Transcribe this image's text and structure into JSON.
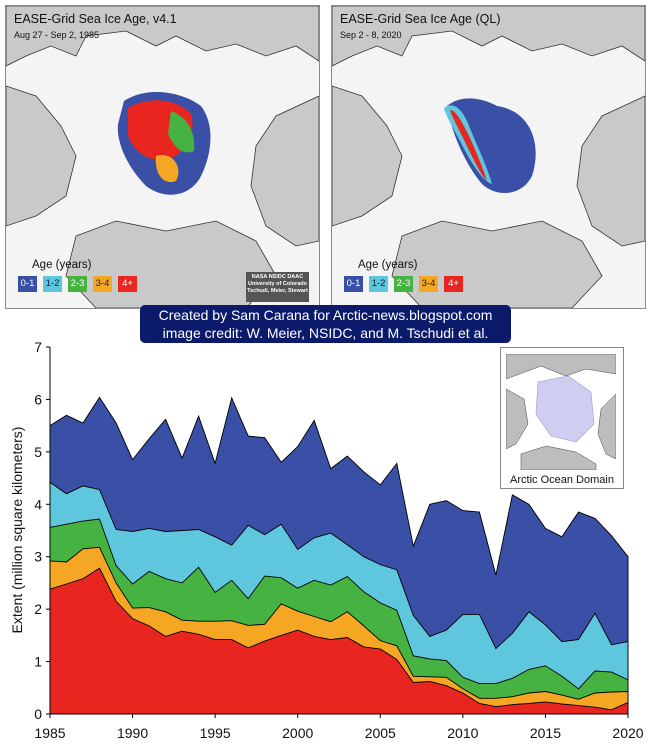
{
  "maps": [
    {
      "title": "EASE-Grid Sea Ice Age, v4.1",
      "date": "Aug 27 - Sep 2, 1985",
      "credit": [
        "NASA NSIDC DAAC",
        "University of Colorado",
        "Tschudi, Meier, Stewart"
      ]
    },
    {
      "title": "EASE-Grid Sea Ice Age (QL)",
      "date": "Sep 2 - 8, 2020"
    }
  ],
  "age_legend": {
    "title": "Age (years)",
    "classes": [
      {
        "label": "0-1",
        "color": "#3a4fa6"
      },
      {
        "label": "1-2",
        "color": "#5fc7dd"
      },
      {
        "label": "2-3",
        "color": "#45b241"
      },
      {
        "label": "3-4",
        "color": "#f5a623"
      },
      {
        "label": "4+",
        "color": "#e8261f"
      }
    ]
  },
  "credits": {
    "line1": "Created by Sam Carana for Arctic-news.blogspot.com",
    "line2": "image credit: W. Meier, NSIDC, and M. Tschudi et al."
  },
  "inset": {
    "caption": "Arctic Ocean Domain"
  },
  "chart_data": {
    "type": "area",
    "stacked": true,
    "ylabel": "Extent (million square kilometers)",
    "xlabel": "",
    "xlim": [
      1985,
      2020
    ],
    "ylim": [
      0,
      7
    ],
    "xticks": [
      1985,
      1990,
      1995,
      2000,
      2005,
      2010,
      2015,
      2020
    ],
    "yticks": [
      0,
      1,
      2,
      3,
      4,
      5,
      6,
      7
    ],
    "x": [
      1985,
      1986,
      1987,
      1988,
      1989,
      1990,
      1991,
      1992,
      1993,
      1994,
      1995,
      1996,
      1997,
      1998,
      1999,
      2000,
      2001,
      2002,
      2003,
      2004,
      2005,
      2006,
      2007,
      2008,
      2009,
      2010,
      2011,
      2012,
      2013,
      2014,
      2015,
      2016,
      2017,
      2018,
      2019,
      2020
    ],
    "series": [
      {
        "color": "#e8261f",
        "cumulative": [
          2.38,
          2.48,
          2.58,
          2.78,
          2.15,
          1.82,
          1.68,
          1.48,
          1.58,
          1.52,
          1.42,
          1.42,
          1.26,
          1.39,
          1.5,
          1.6,
          1.48,
          1.42,
          1.46,
          1.28,
          1.24,
          1.04,
          0.6,
          0.62,
          0.54,
          0.4,
          0.2,
          0.14,
          0.18,
          0.2,
          0.23,
          0.19,
          0.16,
          0.13,
          0.08,
          0.22
        ]
      },
      {
        "color": "#f5a623",
        "cumulative": [
          2.92,
          2.9,
          3.15,
          3.18,
          2.5,
          2.02,
          2.03,
          1.95,
          1.79,
          1.77,
          1.77,
          1.78,
          1.69,
          1.71,
          2.1,
          1.96,
          1.86,
          1.76,
          1.95,
          1.68,
          1.4,
          1.3,
          0.72,
          0.71,
          0.7,
          0.48,
          0.3,
          0.3,
          0.33,
          0.4,
          0.43,
          0.36,
          0.28,
          0.4,
          0.42,
          0.43
        ]
      },
      {
        "color": "#45b241",
        "cumulative": [
          3.56,
          3.62,
          3.68,
          3.72,
          2.83,
          2.48,
          2.72,
          2.58,
          2.5,
          2.8,
          2.32,
          2.55,
          2.2,
          2.63,
          2.6,
          2.4,
          2.55,
          2.46,
          2.62,
          2.33,
          2.12,
          1.98,
          1.11,
          1.05,
          1.02,
          0.7,
          0.58,
          0.58,
          0.68,
          0.85,
          0.92,
          0.72,
          0.48,
          0.82,
          0.8,
          0.65
        ]
      },
      {
        "color": "#5fc7dd",
        "cumulative": [
          4.42,
          4.2,
          4.35,
          4.28,
          3.52,
          3.48,
          3.54,
          3.48,
          3.5,
          3.52,
          3.38,
          3.22,
          3.6,
          3.42,
          3.62,
          3.14,
          3.36,
          3.45,
          3.23,
          3.0,
          2.85,
          2.75,
          1.88,
          1.48,
          1.6,
          1.9,
          1.9,
          1.25,
          1.54,
          1.95,
          1.7,
          1.38,
          1.42,
          1.92,
          1.32,
          1.38
        ]
      },
      {
        "color": "#3a4fa6",
        "cumulative": [
          5.5,
          5.7,
          5.55,
          6.04,
          5.55,
          4.85,
          5.25,
          5.62,
          4.88,
          5.68,
          4.78,
          6.03,
          5.3,
          5.27,
          4.8,
          5.1,
          5.6,
          4.68,
          4.92,
          4.62,
          4.37,
          4.78,
          3.2,
          4.0,
          4.07,
          3.88,
          3.85,
          2.65,
          4.18,
          4.0,
          3.54,
          3.38,
          3.85,
          3.73,
          3.4,
          3.0
        ]
      }
    ]
  }
}
